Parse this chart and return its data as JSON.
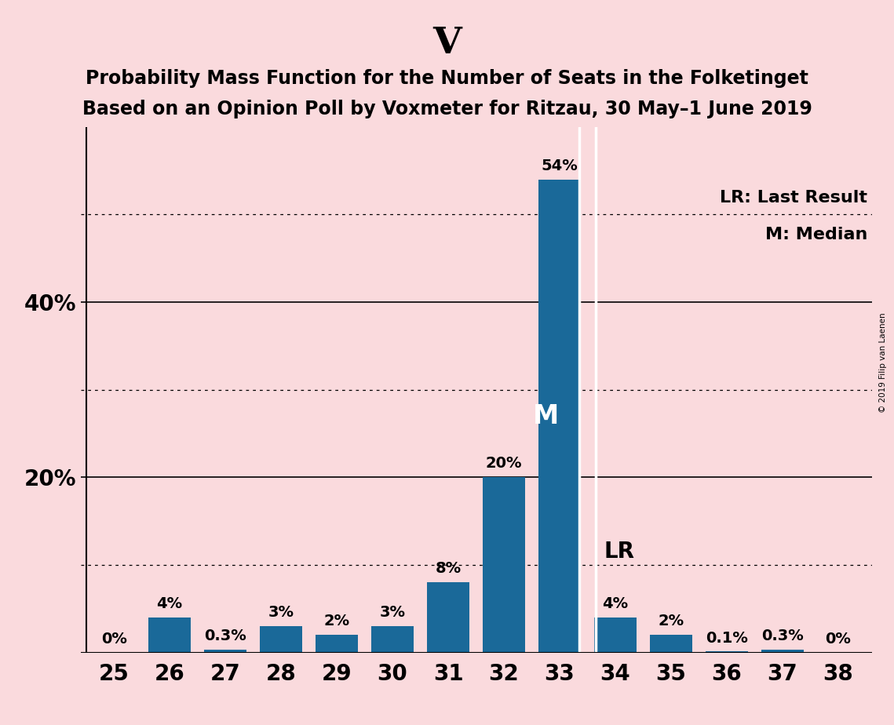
{
  "title": "V",
  "subtitle_line1": "Probability Mass Function for the Number of Seats in the Folketinget",
  "subtitle_line2": "Based on an Opinion Poll by Voxmeter for Ritzau, 30 May–1 June 2019",
  "categories": [
    25,
    26,
    27,
    28,
    29,
    30,
    31,
    32,
    33,
    34,
    35,
    36,
    37,
    38
  ],
  "values": [
    0.0,
    4.0,
    0.3,
    3.0,
    2.0,
    3.0,
    8.0,
    20.0,
    54.0,
    4.0,
    2.0,
    0.1,
    0.3,
    0.0
  ],
  "bar_color": "#1a6999",
  "background_color": "#fadadd",
  "bar_labels": [
    "0%",
    "4%",
    "0.3%",
    "3%",
    "2%",
    "3%",
    "8%",
    "20%",
    "54%",
    "4%",
    "2%",
    "0.1%",
    "0.3%",
    "0%"
  ],
  "ylim": [
    0,
    60
  ],
  "solid_gridlines": [
    20.0,
    40.0
  ],
  "dotted_gridlines": [
    10.0,
    30.0,
    50.0
  ],
  "ytick_positions": [
    20.0,
    40.0
  ],
  "ytick_labels": [
    "20%",
    "40%"
  ],
  "median_seat": 33,
  "last_result_seat": 34,
  "legend_lr": "LR: Last Result",
  "legend_m": "M: Median",
  "watermark": "© 2019 Filip van Laenen",
  "title_fontsize": 34,
  "subtitle_fontsize": 17,
  "bar_label_fontsize": 14,
  "axis_tick_fontsize": 20,
  "ytick_fontsize": 20,
  "legend_fontsize": 16,
  "bar_width": 0.75
}
